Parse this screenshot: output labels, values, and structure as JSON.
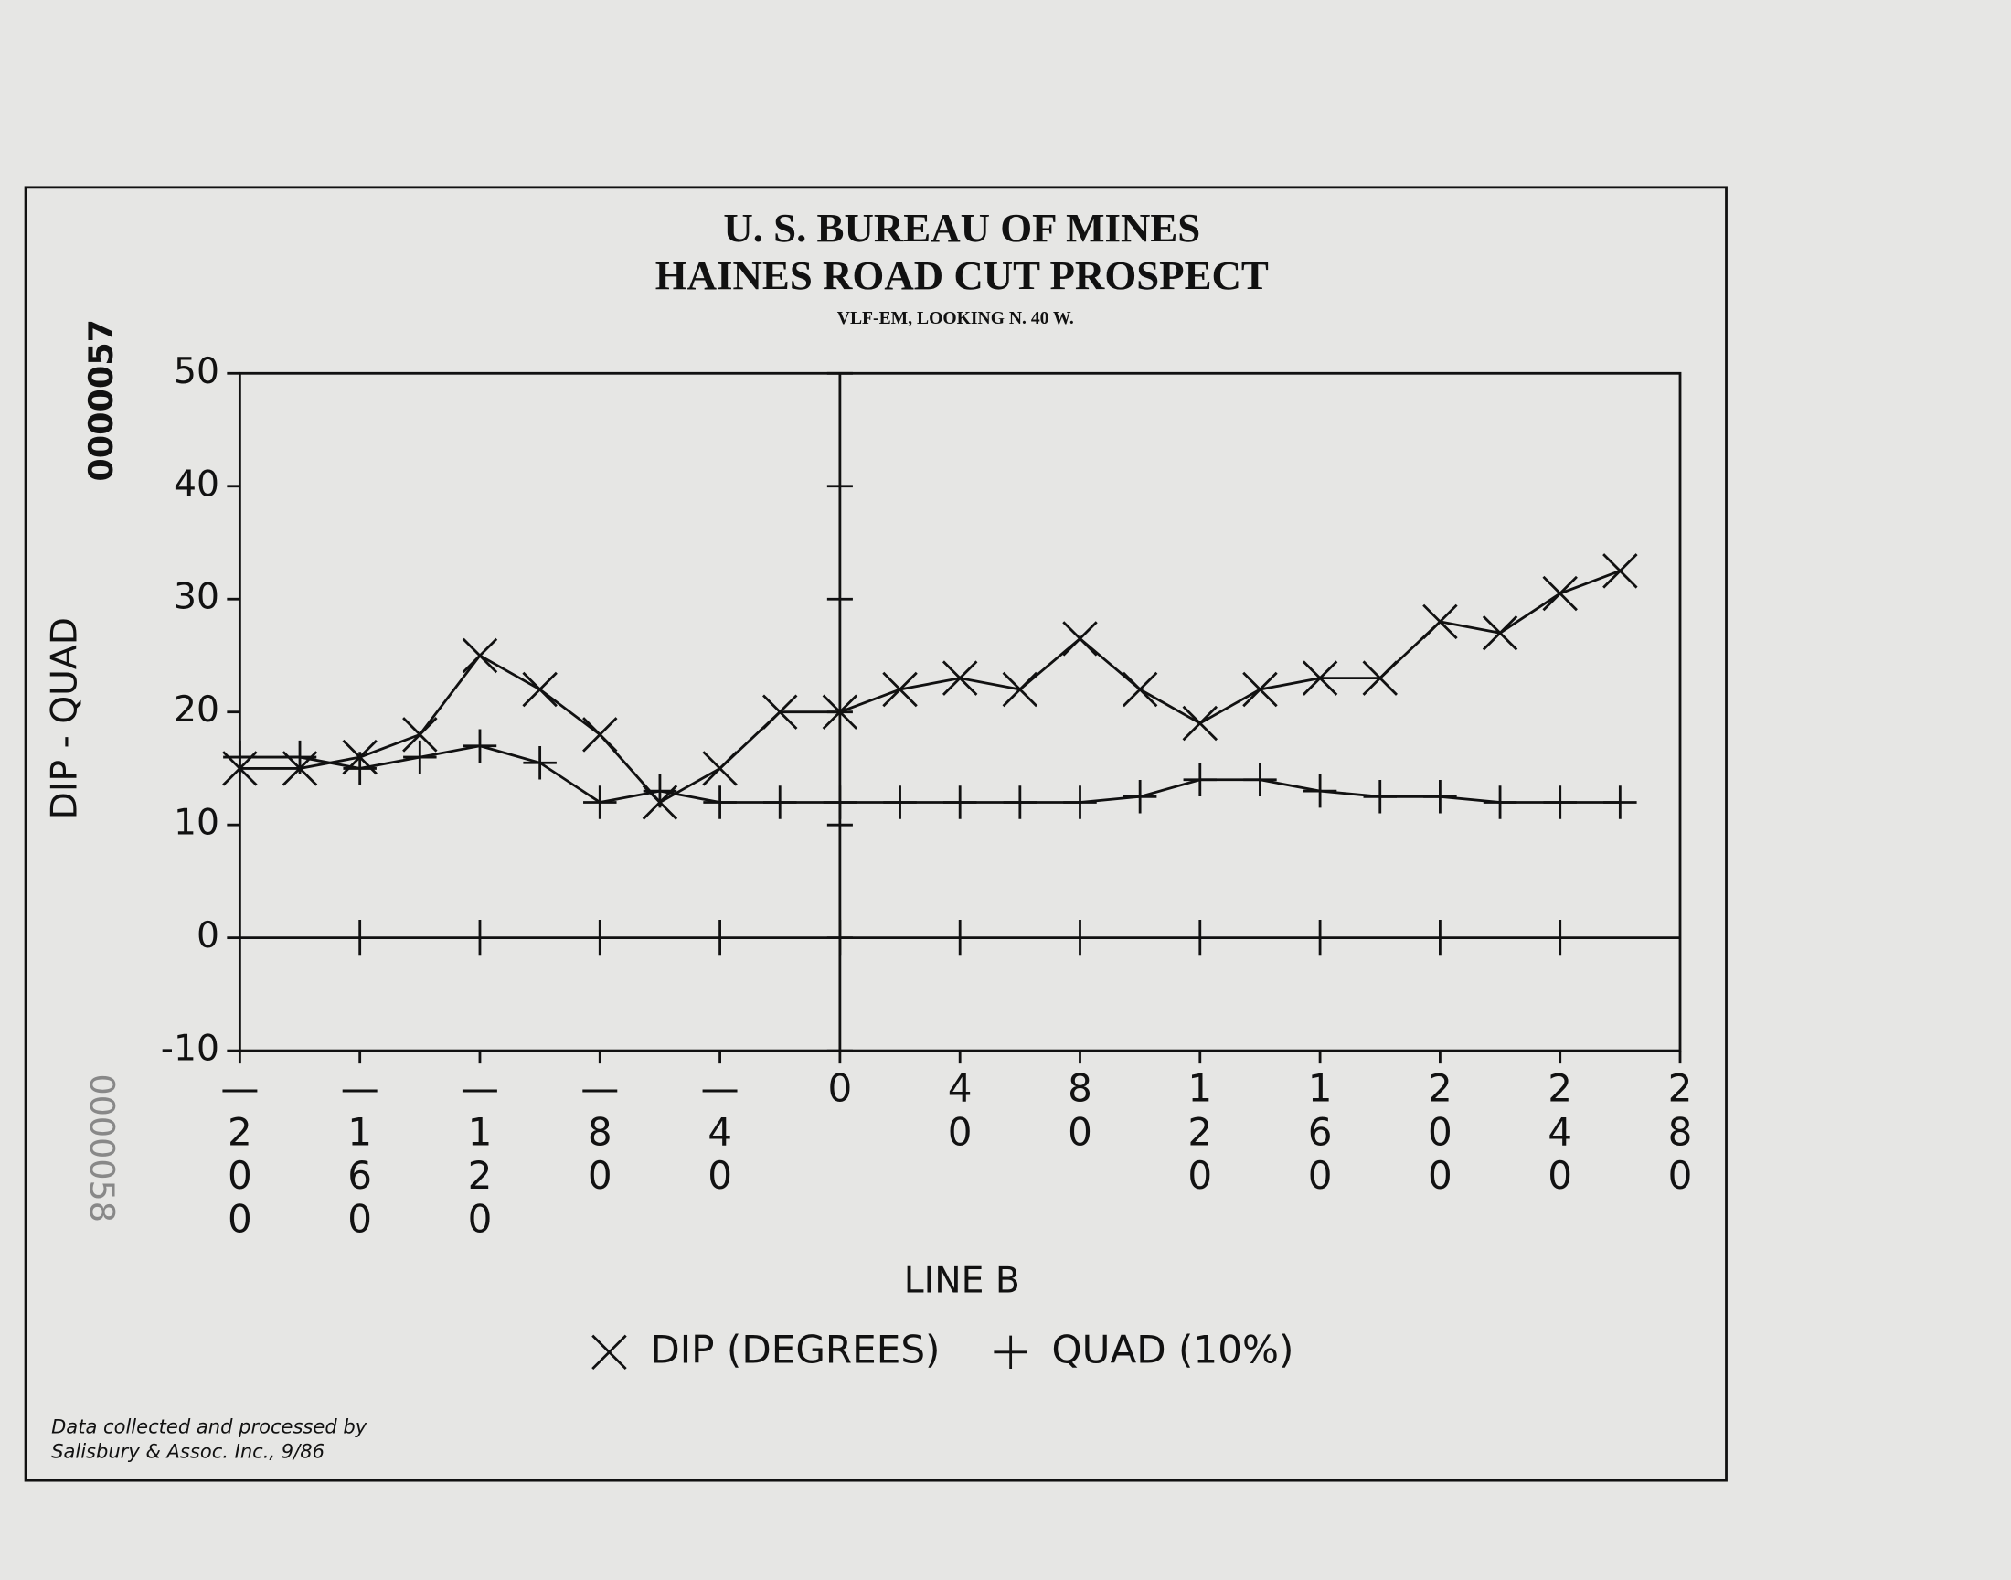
{
  "chart_data": {
    "type": "line",
    "title": "U. S. BUREAU OF MINES",
    "subtitle": "HAINES ROAD CUT PROSPECT",
    "note": "VLF-EM, LOOKING N. 40 W.",
    "x_label": "LINE B",
    "y_label": "DIP - QUAD",
    "x": [
      -200,
      -180,
      -160,
      -140,
      -120,
      -100,
      -80,
      -60,
      -40,
      -20,
      0,
      20,
      40,
      60,
      80,
      100,
      120,
      140,
      160,
      180,
      200,
      220,
      240,
      260
    ],
    "series": [
      {
        "name": "DIP (DEGREES)",
        "marker": "x",
        "color": "#111111",
        "values": [
          15,
          15,
          16,
          18,
          25,
          22,
          18,
          12,
          15,
          20,
          20,
          22,
          23,
          22,
          26.5,
          22,
          19,
          22,
          23,
          23,
          28,
          27,
          30.5,
          32.5
        ]
      },
      {
        "name": "QUAD (10%)",
        "marker": "+",
        "color": "#111111",
        "values": [
          16,
          16,
          15,
          16,
          17,
          15.5,
          12,
          13,
          12,
          12,
          12,
          12,
          12,
          12,
          12,
          12.5,
          14,
          14,
          13,
          12.5,
          12.5,
          12,
          12,
          12
        ]
      }
    ],
    "xlim": [
      -200,
      280
    ],
    "xticks": [
      -200,
      -160,
      -120,
      -80,
      -40,
      0,
      40,
      80,
      120,
      160,
      200,
      240,
      280
    ],
    "ylim": [
      -10,
      50
    ],
    "yticks": [
      -10,
      0,
      10,
      20,
      30,
      40,
      50
    ],
    "footnote": [
      "Data collected and processed by",
      "Salisbury & Assoc. Inc., 9/86"
    ]
  },
  "stamps": [
    "0000057",
    "0000058"
  ]
}
